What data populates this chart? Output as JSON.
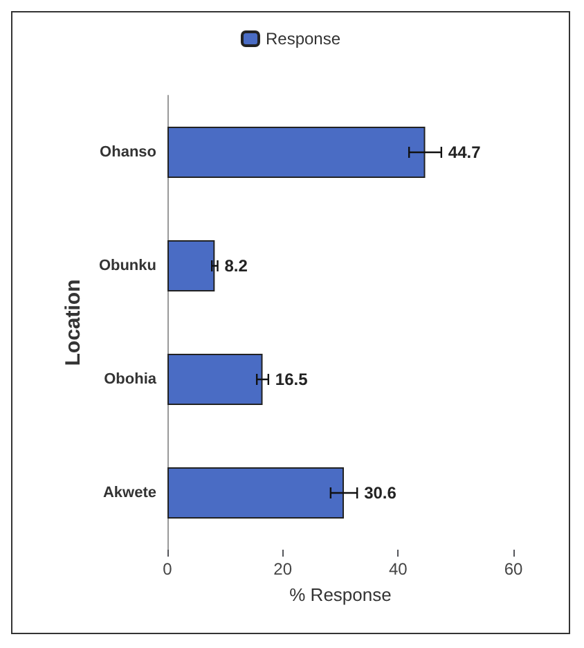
{
  "chart_data": {
    "type": "bar",
    "orientation": "horizontal",
    "categories": [
      "Ohanso",
      "Obunku",
      "Obohia",
      "Akwete"
    ],
    "series": [
      {
        "name": "Response",
        "color": "#4a6cc4",
        "values": [
          44.7,
          8.2,
          16.5,
          30.6
        ],
        "errors": [
          2.8,
          0.5,
          1,
          2.3
        ]
      }
    ],
    "xlabel": "% Response",
    "ylabel": "Location",
    "xlim": [
      0,
      60
    ],
    "xticks": [
      0,
      20,
      40,
      60
    ],
    "data_labels": true,
    "legend": "top",
    "grid": false
  }
}
